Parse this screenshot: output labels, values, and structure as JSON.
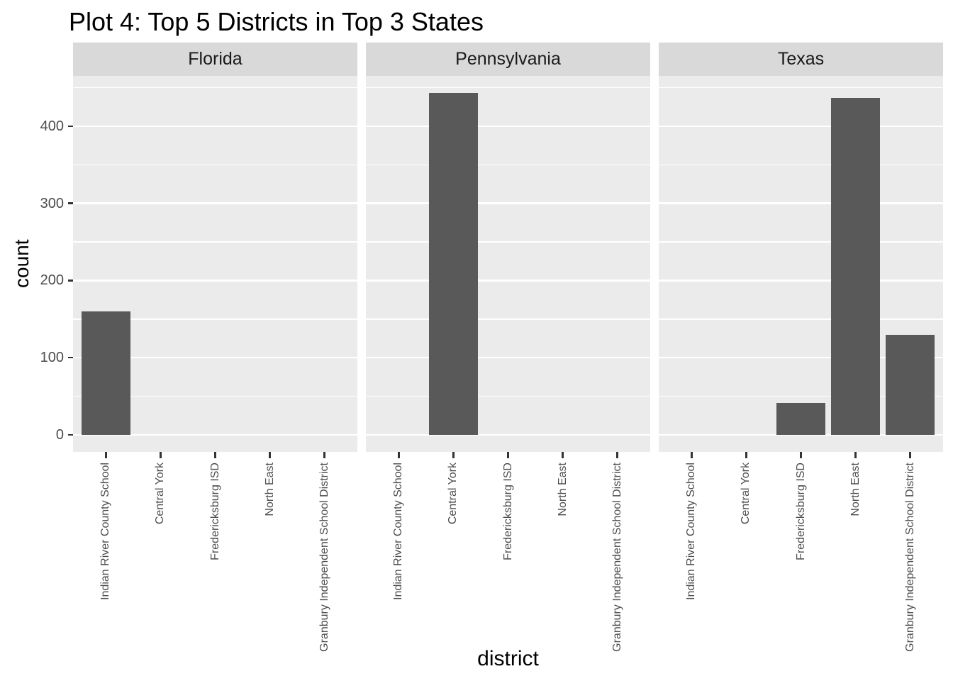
{
  "chart_data": {
    "type": "bar",
    "title": "Plot 4: Top 5 Districts in Top 3 States",
    "xlabel": "district",
    "ylabel": "count",
    "categories": [
      "Indian River County School",
      "Central York",
      "Fredericksburg ISD",
      "North East",
      "Granbury Independent School District"
    ],
    "facets": [
      {
        "label": "Florida",
        "values": [
          160,
          0,
          0,
          0,
          0
        ]
      },
      {
        "label": "Pennsylvania",
        "values": [
          0,
          443,
          0,
          0,
          0
        ]
      },
      {
        "label": "Texas",
        "values": [
          0,
          0,
          41,
          437,
          130
        ]
      }
    ],
    "y_ticks": [
      0,
      100,
      200,
      300,
      400
    ],
    "ylim": [
      0,
      465
    ],
    "grid": "white major and minor gridlines",
    "legend": false,
    "colors": {
      "bar": "#595959",
      "panel_bg": "#EBEBEB",
      "strip_bg": "#D9D9D9",
      "grid": "#FFFFFF",
      "axis_text": "#4D4D4D",
      "strip_text": "#1A1A1A",
      "title_text": "#000000"
    }
  }
}
